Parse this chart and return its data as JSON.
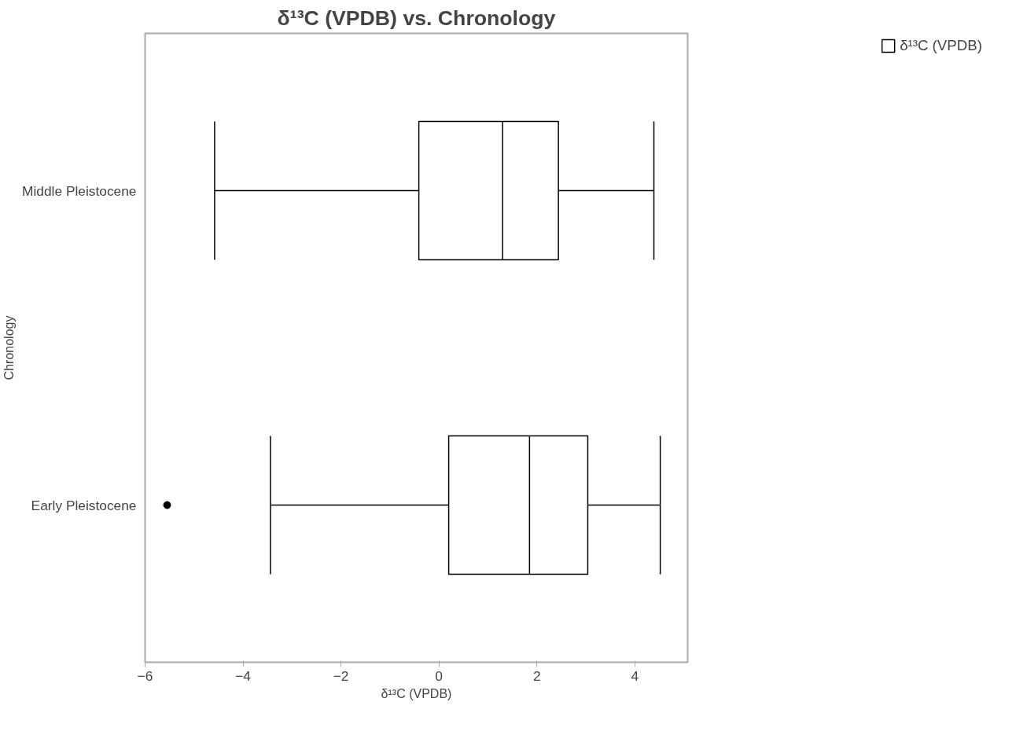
{
  "chart_data": {
    "type": "box",
    "orientation": "horizontal",
    "title": "δ¹³C (VPDB) vs. Chronology",
    "xlabel": "δ¹³C (VPDB)",
    "ylabel": "Chronology",
    "categories": [
      "Middle Pleistocene",
      "Early Pleistocene"
    ],
    "series": [
      {
        "name": "δ¹³C (VPDB)",
        "color": "#000000",
        "boxes": [
          {
            "low": -4.58,
            "q1": -0.41,
            "median": 1.3,
            "q3": 2.44,
            "high": 4.39
          },
          {
            "low": -3.44,
            "q1": 0.2,
            "median": 1.85,
            "q3": 3.04,
            "high": 4.52,
            "outliers": [
              -5.55
            ]
          }
        ]
      }
    ],
    "xlim": [
      -6,
      5.08
    ],
    "xticks": [
      -6,
      -4,
      -2,
      0,
      2,
      4
    ],
    "grid": false,
    "legend": "top right"
  }
}
